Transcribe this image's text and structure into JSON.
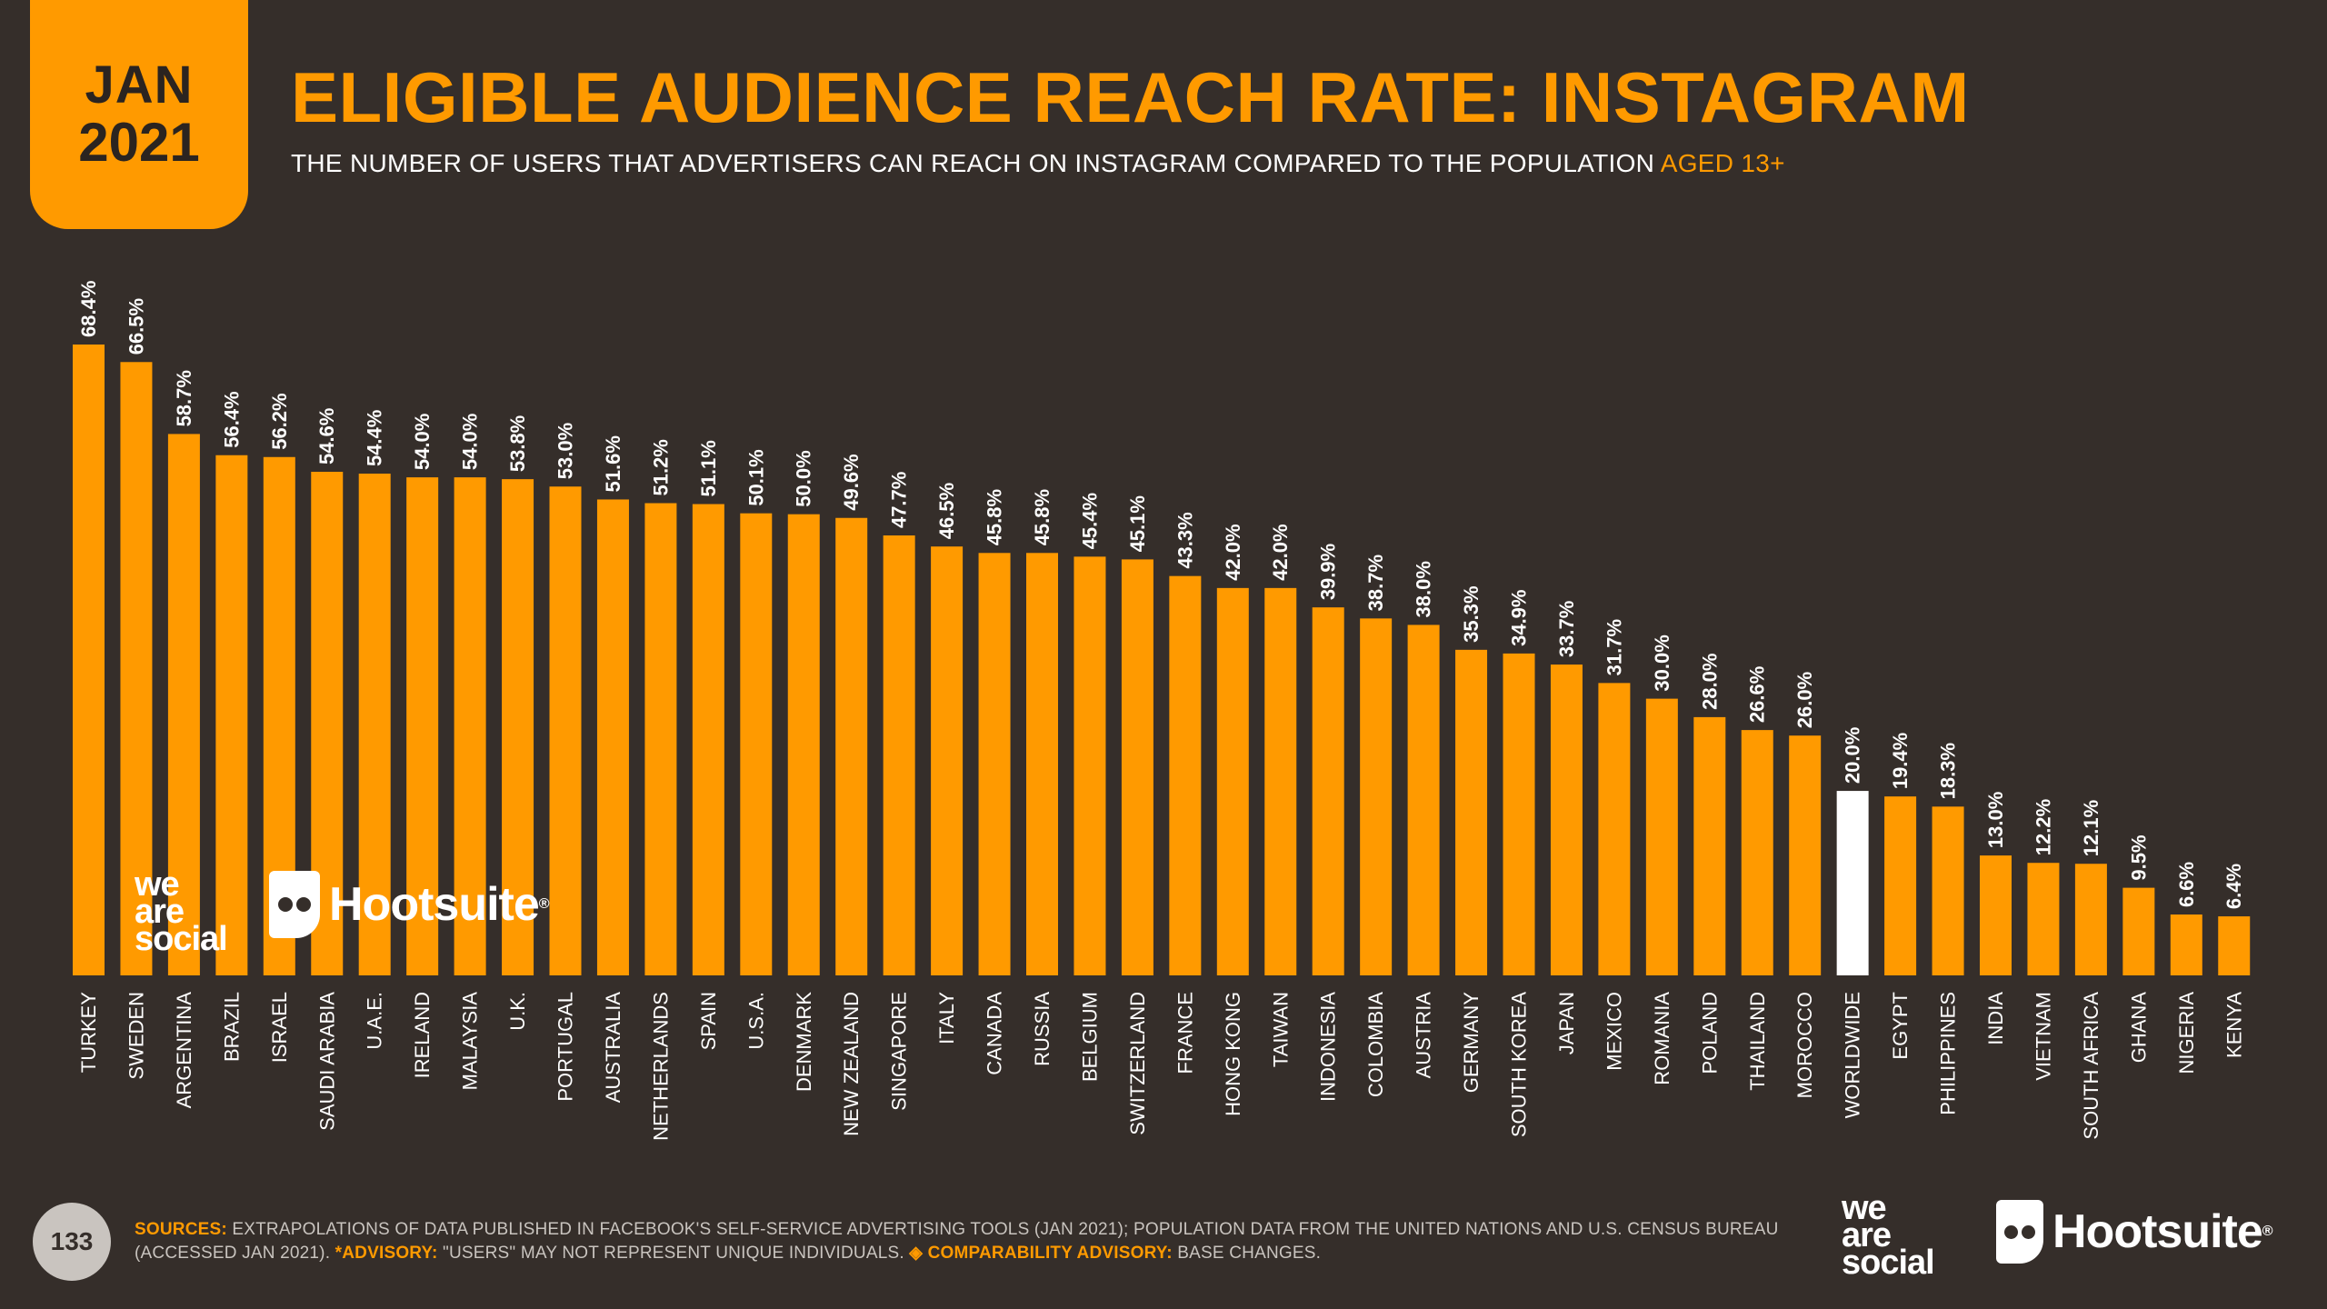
{
  "header": {
    "month": "JAN",
    "year": "2021",
    "title": "ELIGIBLE AUDIENCE REACH RATE: INSTAGRAM",
    "subtitle_main": "THE NUMBER OF USERS THAT ADVERTISERS CAN REACH ON INSTAGRAM COMPARED TO THE POPULATION",
    "subtitle_highlight": "AGED 13+"
  },
  "brands": {
    "we_are_social": [
      "we",
      "are",
      "social"
    ],
    "hootsuite": "Hootsuite",
    "registered": "®"
  },
  "footer": {
    "page_number": "133",
    "sources_label": "SOURCES:",
    "sources_text": "EXTRAPOLATIONS OF DATA PUBLISHED IN FACEBOOK'S SELF-SERVICE ADVERTISING TOOLS (JAN 2021); POPULATION DATA FROM THE UNITED NATIONS AND U.S. CENSUS BUREAU (ACCESSED JAN 2021).",
    "advisory_label": "*ADVISORY:",
    "advisory_text": "\"USERS\" MAY NOT REPRESENT UNIQUE INDIVIDUALS.",
    "comparability_label": "◈ COMPARABILITY ADVISORY:",
    "comparability_text": "BASE CHANGES."
  },
  "colors": {
    "background": "#352e2a",
    "accent": "#ff9a00",
    "highlight_bar": "#ffffff"
  },
  "chart_data": {
    "type": "bar",
    "categories": [
      "TURKEY",
      "SWEDEN",
      "ARGENTINA",
      "BRAZIL",
      "ISRAEL",
      "SAUDI ARABIA",
      "U.A.E.",
      "IRELAND",
      "MALAYSIA",
      "U.K.",
      "PORTUGAL",
      "AUSTRALIA",
      "NETHERLANDS",
      "SPAIN",
      "U.S.A.",
      "DENMARK",
      "NEW ZEALAND",
      "SINGAPORE",
      "ITALY",
      "CANADA",
      "RUSSIA",
      "BELGIUM",
      "SWITZERLAND",
      "FRANCE",
      "HONG KONG",
      "TAIWAN",
      "INDONESIA",
      "COLOMBIA",
      "AUSTRIA",
      "GERMANY",
      "SOUTH KOREA",
      "JAPAN",
      "MEXICO",
      "ROMANIA",
      "POLAND",
      "THAILAND",
      "MOROCCO",
      "WORLDWIDE",
      "EGYPT",
      "PHILIPPINES",
      "INDIA",
      "VIETNAM",
      "SOUTH AFRICA",
      "GHANA",
      "NIGERIA",
      "KENYA"
    ],
    "values": [
      68.4,
      66.5,
      58.7,
      56.4,
      56.2,
      54.6,
      54.4,
      54.0,
      54.0,
      53.8,
      53.0,
      51.6,
      51.2,
      51.1,
      50.1,
      50.0,
      49.6,
      47.7,
      46.5,
      45.8,
      45.8,
      45.4,
      45.1,
      43.3,
      42.0,
      42.0,
      39.9,
      38.7,
      38.0,
      35.3,
      34.9,
      33.7,
      31.7,
      30.0,
      28.0,
      26.6,
      26.0,
      20.0,
      19.4,
      18.3,
      13.0,
      12.2,
      12.1,
      9.5,
      6.6,
      6.4
    ],
    "labels": [
      "68.4%",
      "66.5%",
      "58.7%",
      "56.4%",
      "56.2%",
      "54.6%",
      "54.4%",
      "54.0%",
      "54.0%",
      "53.8%",
      "53.0%",
      "51.6%",
      "51.2%",
      "51.1%",
      "50.1%",
      "50.0%",
      "49.6%",
      "47.7%",
      "46.5%",
      "45.8%",
      "45.8%",
      "45.4%",
      "45.1%",
      "43.3%",
      "42.0%",
      "42.0%",
      "39.9%",
      "38.7%",
      "38.0%",
      "35.3%",
      "34.9%",
      "33.7%",
      "31.7%",
      "30.0%",
      "28.0%",
      "26.6%",
      "26.0%",
      "20.0%",
      "19.4%",
      "18.3%",
      "13.0%",
      "12.2%",
      "12.1%",
      "9.5%",
      "6.6%",
      "6.4%"
    ],
    "highlight_category": "WORLDWIDE",
    "title": "ELIGIBLE AUDIENCE REACH RATE: INSTAGRAM",
    "xlabel": "",
    "ylabel": "",
    "ylim": [
      0,
      70
    ],
    "grid": false,
    "legend": "none"
  }
}
